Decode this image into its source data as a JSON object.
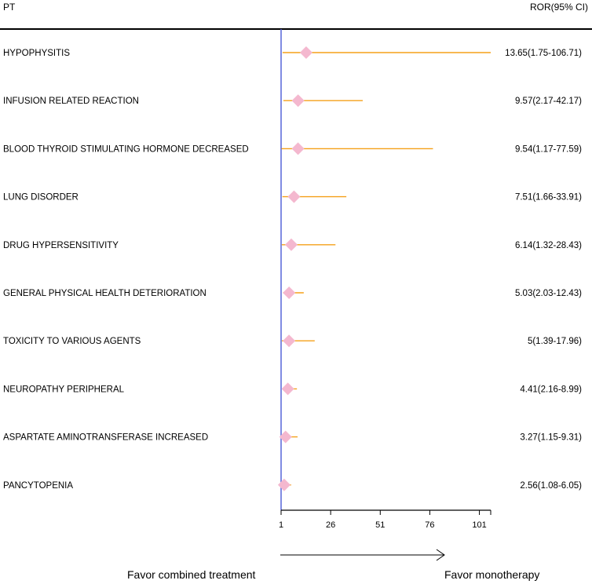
{
  "header": {
    "pt": "PT",
    "ror": "ROR(95% CI)"
  },
  "chart_data": {
    "type": "forest",
    "x_axis": {
      "min": 1,
      "max": 106.71,
      "ticks": [
        1,
        26,
        51,
        76,
        101
      ]
    },
    "reference_line": 1,
    "rows": [
      {
        "pt": "HYPOPHYSITIS",
        "ror": 13.65,
        "lo": 1.75,
        "hi": 106.71,
        "label": "13.65(1.75-106.71)"
      },
      {
        "pt": "INFUSION RELATED REACTION",
        "ror": 9.57,
        "lo": 2.17,
        "hi": 42.17,
        "label": "9.57(2.17-42.17)"
      },
      {
        "pt": "BLOOD THYROID STIMULATING HORMONE DECREASED",
        "ror": 9.54,
        "lo": 1.17,
        "hi": 77.59,
        "label": "9.54(1.17-77.59)"
      },
      {
        "pt": "LUNG DISORDER",
        "ror": 7.51,
        "lo": 1.66,
        "hi": 33.91,
        "label": "7.51(1.66-33.91)"
      },
      {
        "pt": "DRUG HYPERSENSITIVITY",
        "ror": 6.14,
        "lo": 1.32,
        "hi": 28.43,
        "label": "6.14(1.32-28.43)"
      },
      {
        "pt": "GENERAL PHYSICAL HEALTH DETERIORATION",
        "ror": 5.03,
        "lo": 2.03,
        "hi": 12.43,
        "label": "5.03(2.03-12.43)"
      },
      {
        "pt": "TOXICITY TO VARIOUS AGENTS",
        "ror": 5,
        "lo": 1.39,
        "hi": 17.96,
        "label": "5(1.39-17.96)"
      },
      {
        "pt": "NEUROPATHY PERIPHERAL",
        "ror": 4.41,
        "lo": 2.16,
        "hi": 8.99,
        "label": "4.41(2.16-8.99)"
      },
      {
        "pt": "ASPARTATE AMINOTRANSFERASE INCREASED",
        "ror": 3.27,
        "lo": 1.15,
        "hi": 9.31,
        "label": "3.27(1.15-9.31)"
      },
      {
        "pt": "PANCYTOPENIA",
        "ror": 2.56,
        "lo": 1.08,
        "hi": 6.05,
        "label": "2.56(1.08-6.05)"
      }
    ],
    "favor_left": "Favor combined treatment",
    "favor_right": "Favor monotherapy"
  },
  "colors": {
    "ci_line": "#f5a019",
    "marker": "#f4b8cf",
    "reference": "#4a5bd6",
    "rule": "#000000"
  }
}
